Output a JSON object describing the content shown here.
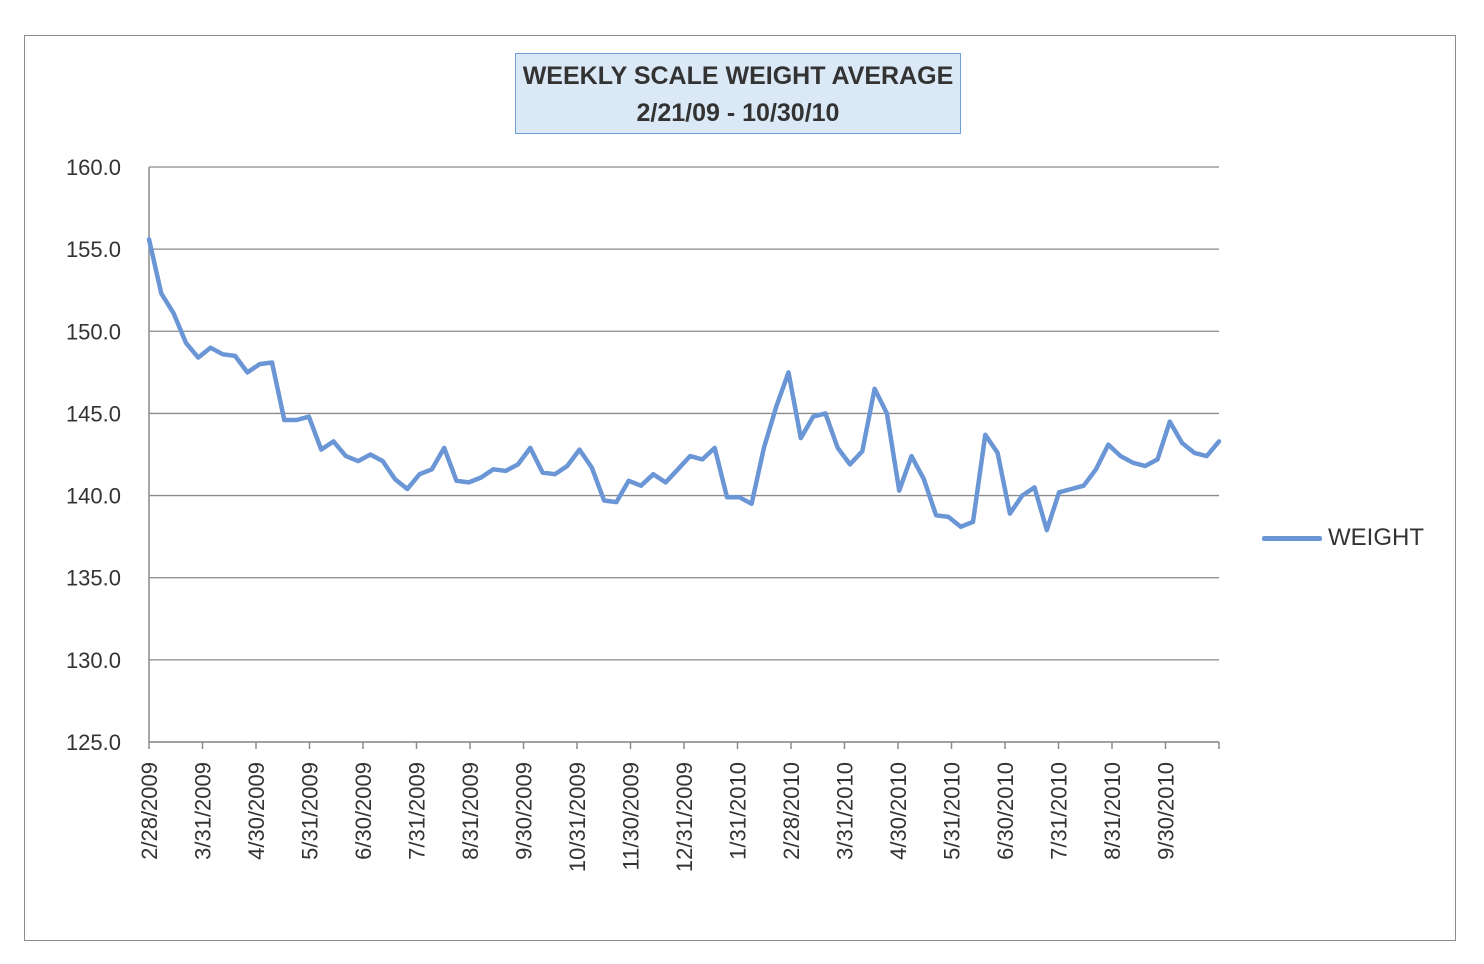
{
  "chart_data": {
    "type": "line",
    "title": "WEEKLY SCALE WEIGHT AVERAGE",
    "subtitle": "2/21/09 - 10/30/10",
    "xlabel": "",
    "ylabel": "",
    "ylim": [
      125.0,
      160.0
    ],
    "y_ticks": [
      "125.0",
      "130.0",
      "135.0",
      "140.0",
      "145.0",
      "150.0",
      "155.0",
      "160.0"
    ],
    "x_tick_labels": [
      "2/28/2009",
      "3/31/2009",
      "4/30/2009",
      "5/31/2009",
      "6/30/2009",
      "7/31/2009",
      "8/31/2009",
      "9/30/2009",
      "10/31/2009",
      "11/30/2009",
      "12/31/2009",
      "1/31/2010",
      "2/28/2010",
      "3/31/2010",
      "4/30/2010",
      "5/31/2010",
      "6/30/2010",
      "7/31/2010",
      "8/31/2010",
      "9/30/2010"
    ],
    "grid": true,
    "legend_position": "right",
    "line_color": "#6b96d6",
    "series": [
      {
        "name": "WEIGHT",
        "values": [
          155.6,
          152.3,
          151.1,
          149.3,
          148.4,
          149.0,
          148.6,
          148.5,
          147.5,
          148.0,
          148.1,
          144.6,
          144.6,
          144.8,
          142.8,
          143.3,
          142.4,
          142.1,
          142.5,
          142.1,
          141.0,
          140.4,
          141.3,
          141.6,
          142.9,
          140.9,
          140.8,
          141.1,
          141.6,
          141.5,
          141.9,
          142.9,
          141.4,
          141.3,
          141.8,
          142.8,
          141.7,
          139.7,
          139.6,
          140.9,
          140.6,
          141.3,
          140.8,
          141.6,
          142.4,
          142.2,
          142.9,
          139.9,
          139.9,
          139.5,
          142.9,
          145.4,
          147.5,
          143.5,
          144.8,
          145.0,
          142.9,
          141.9,
          142.7,
          146.5,
          145.0,
          140.3,
          142.4,
          141.0,
          138.8,
          138.7,
          138.1,
          138.4,
          143.7,
          142.6,
          138.9,
          140.0,
          140.5,
          137.9,
          140.2,
          140.4,
          140.6,
          141.6,
          143.1,
          142.4,
          142.0,
          141.8,
          142.2,
          144.5,
          143.2,
          142.6,
          142.4,
          143.3
        ]
      }
    ]
  }
}
